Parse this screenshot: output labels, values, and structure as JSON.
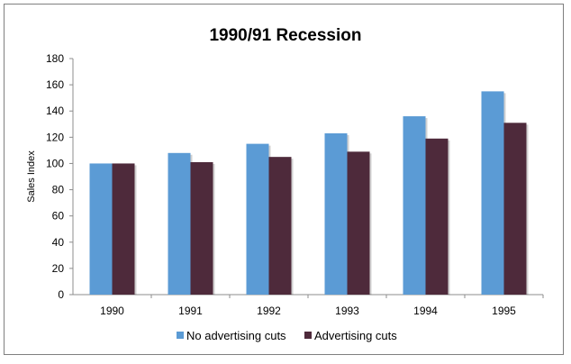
{
  "chart_data": {
    "type": "bar",
    "title": "1990/91 Recession",
    "xlabel": "",
    "ylabel": "Sales Index",
    "categories": [
      "1990",
      "1991",
      "1992",
      "1993",
      "1994",
      "1995"
    ],
    "series": [
      {
        "name": "No advertising cuts",
        "values": [
          100,
          108,
          115,
          123,
          136,
          155
        ],
        "color": "#5b9bd5"
      },
      {
        "name": "Advertising cuts",
        "values": [
          100,
          101,
          105,
          109,
          119,
          131
        ],
        "color": "#4e2a3b"
      }
    ],
    "ylim": [
      0,
      180
    ],
    "yticks": [
      0,
      20,
      40,
      60,
      80,
      100,
      120,
      140,
      160,
      180
    ],
    "grid": false,
    "legend_position": "bottom"
  }
}
